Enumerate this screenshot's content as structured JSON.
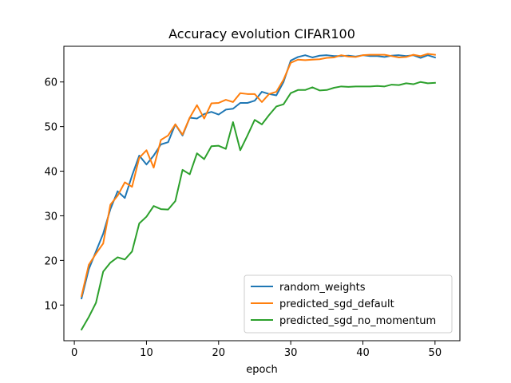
{
  "chart_data": {
    "type": "line",
    "title": "Accuracy evolution CIFAR100",
    "xlabel": "epoch",
    "ylabel": "",
    "xlim": [
      -1.45,
      53.45
    ],
    "ylim": [
      2.0,
      68.0
    ],
    "xticks": [
      0,
      10,
      20,
      30,
      40,
      50
    ],
    "yticks": [
      10,
      20,
      30,
      40,
      50,
      60
    ],
    "grid": false,
    "legend_position": "lower-right",
    "x": [
      1,
      2,
      3,
      4,
      5,
      6,
      7,
      8,
      9,
      10,
      11,
      12,
      13,
      14,
      15,
      16,
      17,
      18,
      19,
      20,
      21,
      22,
      23,
      24,
      25,
      26,
      27,
      28,
      29,
      30,
      31,
      32,
      33,
      34,
      35,
      36,
      37,
      38,
      39,
      40,
      41,
      42,
      43,
      44,
      45,
      46,
      47,
      48,
      49,
      50
    ],
    "series": [
      {
        "name": "random_weights",
        "color": "#1f77b4",
        "values": [
          11.5,
          18.0,
          22.0,
          26.0,
          31.5,
          35.5,
          34.0,
          39.0,
          43.5,
          41.5,
          43.5,
          46.0,
          46.5,
          50.5,
          48.0,
          52.0,
          51.8,
          52.8,
          53.3,
          52.7,
          53.8,
          54.0,
          55.3,
          55.3,
          55.8,
          57.8,
          57.3,
          57.0,
          60.0,
          64.8,
          65.6,
          66.0,
          65.5,
          65.9,
          66.0,
          65.8,
          65.8,
          65.9,
          65.7,
          66.0,
          65.8,
          65.8,
          65.6,
          65.9,
          66.0,
          65.8,
          66.0,
          65.4,
          66.0,
          65.5
        ]
      },
      {
        "name": "predicted_sgd_default",
        "color": "#ff7f0e",
        "values": [
          12.0,
          19.0,
          21.5,
          23.8,
          32.5,
          34.5,
          37.5,
          36.5,
          43.0,
          44.7,
          40.8,
          47.0,
          48.0,
          50.5,
          48.2,
          52.0,
          54.8,
          51.8,
          55.2,
          55.3,
          56.0,
          55.5,
          57.5,
          57.3,
          57.3,
          55.5,
          57.3,
          57.8,
          60.5,
          64.3,
          65.0,
          64.9,
          65.0,
          65.1,
          65.4,
          65.5,
          66.0,
          65.7,
          65.6,
          66.0,
          66.1,
          66.1,
          66.1,
          65.8,
          65.5,
          65.6,
          66.1,
          65.8,
          66.3,
          66.1
        ]
      },
      {
        "name": "predicted_sgd_no_momentum",
        "color": "#2ca02c",
        "values": [
          4.5,
          7.3,
          10.5,
          17.5,
          19.5,
          20.7,
          20.2,
          22.0,
          28.3,
          29.8,
          32.2,
          31.5,
          31.4,
          33.3,
          40.3,
          39.3,
          44.0,
          42.7,
          45.6,
          45.7,
          45.0,
          51.0,
          44.7,
          48.0,
          51.5,
          50.5,
          52.6,
          54.5,
          55.0,
          57.5,
          58.2,
          58.2,
          58.8,
          58.1,
          58.2,
          58.7,
          59.0,
          58.9,
          59.0,
          59.0,
          59.0,
          59.1,
          59.0,
          59.4,
          59.3,
          59.7,
          59.5,
          60.0,
          59.7,
          59.8
        ]
      }
    ]
  }
}
